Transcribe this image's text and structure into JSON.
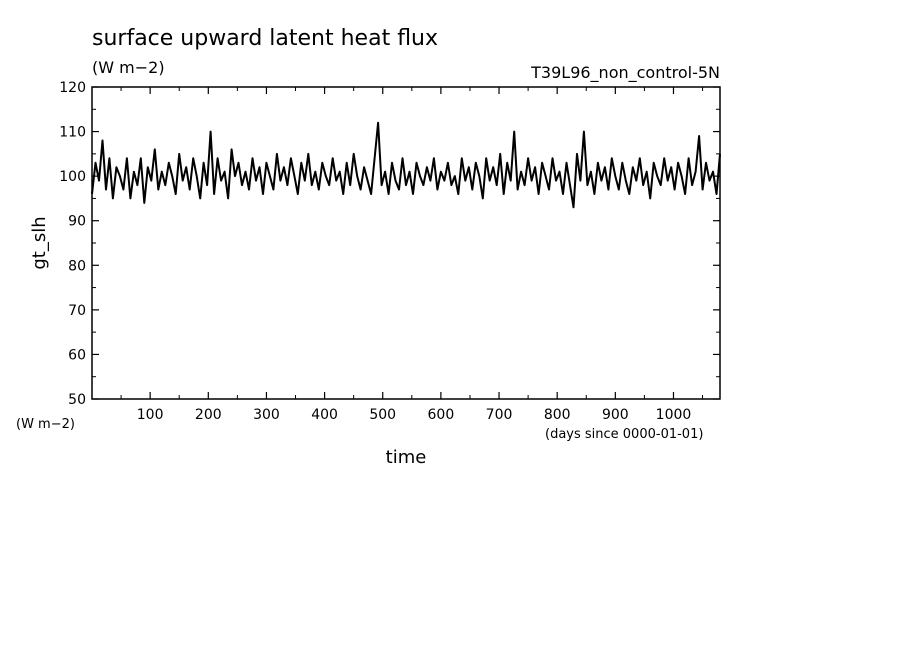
{
  "chart_data": {
    "type": "line",
    "title": "surface upward latent heat flux",
    "units": "(W m−2)",
    "experiment": "T39L96_non_control-5N",
    "ylabel": "gt_slh",
    "y_units": "(W m−2)",
    "xlabel": "time",
    "x_units": "(days since 0000-01-01)",
    "xlim": [
      0,
      1080
    ],
    "ylim": [
      50,
      120
    ],
    "x_ticks": [
      100,
      200,
      300,
      400,
      500,
      600,
      700,
      800,
      900,
      1000
    ],
    "y_ticks": [
      50,
      60,
      70,
      80,
      90,
      100,
      110,
      120
    ],
    "grid": false,
    "line_color": "#000000",
    "series": [
      {
        "x": [
          0,
          6,
          12,
          18,
          24,
          30,
          36,
          42,
          48,
          54,
          60,
          66,
          72,
          78,
          84,
          90,
          96,
          102,
          108,
          114,
          120,
          126,
          132,
          138,
          144,
          150,
          156,
          162,
          168,
          174,
          180,
          186,
          192,
          198,
          204,
          210,
          216,
          222,
          228,
          234,
          240,
          246,
          252,
          258,
          264,
          270,
          276,
          282,
          288,
          294,
          300,
          306,
          312,
          318,
          324,
          330,
          336,
          342,
          348,
          354,
          360,
          366,
          372,
          378,
          384,
          390,
          396,
          402,
          408,
          414,
          420,
          426,
          432,
          438,
          444,
          450,
          456,
          462,
          468,
          474,
          480,
          486,
          492,
          498,
          504,
          510,
          516,
          522,
          528,
          534,
          540,
          546,
          552,
          558,
          564,
          570,
          576,
          582,
          588,
          594,
          600,
          606,
          612,
          618,
          624,
          630,
          636,
          642,
          648,
          654,
          660,
          666,
          672,
          678,
          684,
          690,
          696,
          702,
          708,
          714,
          720,
          726,
          732,
          738,
          744,
          750,
          756,
          762,
          768,
          774,
          780,
          786,
          792,
          798,
          804,
          810,
          816,
          822,
          828,
          834,
          840,
          846,
          852,
          858,
          864,
          870,
          876,
          882,
          888,
          894,
          900,
          906,
          912,
          918,
          924,
          930,
          936,
          942,
          948,
          954,
          960,
          966,
          972,
          978,
          984,
          990,
          996,
          1002,
          1008,
          1014,
          1020,
          1026,
          1032,
          1038,
          1044,
          1050,
          1056,
          1062,
          1068,
          1074,
          1080
        ],
        "values": [
          96,
          103,
          99,
          108,
          97,
          104,
          95,
          102,
          100,
          97,
          104,
          95,
          101,
          98,
          104,
          94,
          102,
          99,
          106,
          97,
          101,
          98,
          103,
          100,
          96,
          105,
          99,
          102,
          97,
          104,
          100,
          95,
          103,
          98,
          110,
          96,
          104,
          99,
          101,
          95,
          106,
          100,
          103,
          98,
          101,
          97,
          104,
          99,
          102,
          96,
          103,
          100,
          97,
          105,
          99,
          102,
          98,
          104,
          100,
          96,
          103,
          99,
          105,
          98,
          101,
          97,
          103,
          100,
          98,
          104,
          99,
          101,
          96,
          103,
          98,
          105,
          100,
          97,
          102,
          99,
          96,
          104,
          112,
          98,
          101,
          96,
          103,
          99,
          97,
          104,
          98,
          101,
          96,
          103,
          100,
          98,
          102,
          99,
          104,
          97,
          101,
          99,
          103,
          98,
          100,
          96,
          104,
          99,
          102,
          97,
          103,
          100,
          95,
          104,
          99,
          102,
          98,
          105,
          96,
          103,
          99,
          110,
          97,
          101,
          98,
          104,
          99,
          102,
          96,
          103,
          100,
          97,
          104,
          99,
          101,
          96,
          103,
          98,
          93,
          105,
          99,
          110,
          98,
          101,
          96,
          103,
          99,
          102,
          97,
          104,
          100,
          97,
          103,
          99,
          96,
          102,
          99,
          104,
          98,
          101,
          95,
          103,
          100,
          98,
          104,
          99,
          102,
          97,
          103,
          100,
          96,
          104,
          98,
          101,
          109,
          97,
          103,
          99,
          101,
          96,
          105
        ]
      }
    ]
  }
}
